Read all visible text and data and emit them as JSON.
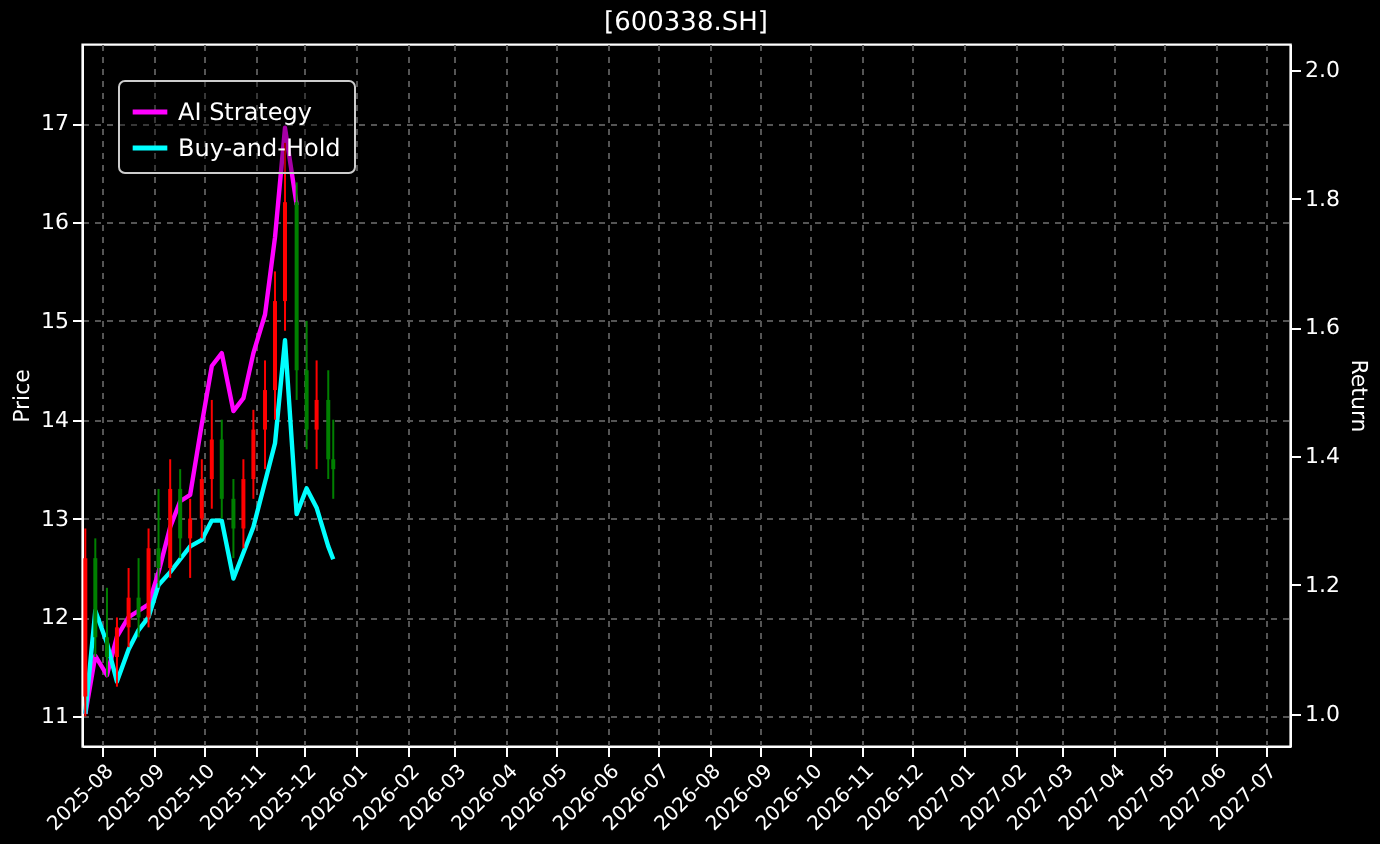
{
  "chart_data": {
    "type": "candlestick",
    "title": "[600338.SH]",
    "ylabel": "Price",
    "y2label": "Return",
    "x": [
      "2025-07-22",
      "2025-07-28",
      "2025-08-04",
      "2025-08-10",
      "2025-08-17",
      "2025-08-23",
      "2025-08-29",
      "2025-09-04",
      "2025-09-11",
      "2025-09-17",
      "2025-09-23",
      "2025-09-30",
      "2025-10-06",
      "2025-10-12",
      "2025-10-19",
      "2025-10-25",
      "2025-10-31",
      "2025-11-07",
      "2025-11-13",
      "2025-11-19",
      "2025-11-26",
      "2025-12-02",
      "2025-12-08",
      "2025-12-15",
      "2025-12-18"
    ],
    "ohlc": [
      [
        11.2,
        12.9,
        11.0,
        12.6
      ],
      [
        12.6,
        12.8,
        11.6,
        11.8
      ],
      [
        11.8,
        12.3,
        11.4,
        11.6
      ],
      [
        11.6,
        12.0,
        11.3,
        11.9
      ],
      [
        11.9,
        12.5,
        11.7,
        12.2
      ],
      [
        12.2,
        12.6,
        11.8,
        12.0
      ],
      [
        12.0,
        12.9,
        11.9,
        12.7
      ],
      [
        12.7,
        13.3,
        12.3,
        12.5
      ],
      [
        12.5,
        13.6,
        12.4,
        13.3
      ],
      [
        13.3,
        13.5,
        12.6,
        12.8
      ],
      [
        12.8,
        13.2,
        12.4,
        13.0
      ],
      [
        13.0,
        13.6,
        12.8,
        13.4
      ],
      [
        13.4,
        14.2,
        13.1,
        13.8
      ],
      [
        13.8,
        14.0,
        13.0,
        13.2
      ],
      [
        13.2,
        13.4,
        12.6,
        12.9
      ],
      [
        12.9,
        13.6,
        12.7,
        13.4
      ],
      [
        13.4,
        14.1,
        13.2,
        13.9
      ],
      [
        13.9,
        14.6,
        13.5,
        14.3
      ],
      [
        14.3,
        15.5,
        14.0,
        15.2
      ],
      [
        15.2,
        16.8,
        14.9,
        16.2
      ],
      [
        16.2,
        16.4,
        14.2,
        14.5
      ],
      [
        14.5,
        15.0,
        13.7,
        13.9
      ],
      [
        13.9,
        14.6,
        13.5,
        14.2
      ],
      [
        14.2,
        14.5,
        13.4,
        13.6
      ],
      [
        13.6,
        14.0,
        13.2,
        13.5
      ]
    ],
    "colors": [
      "#ff0000",
      "#008000",
      "#008000",
      "#ff0000",
      "#ff0000",
      "#008000",
      "#ff0000",
      "#008000",
      "#ff0000",
      "#008000",
      "#ff0000",
      "#ff0000",
      "#ff0000",
      "#008000",
      "#008000",
      "#ff0000",
      "#ff0000",
      "#ff0000",
      "#ff0000",
      "#ff0000",
      "#008000",
      "#008000",
      "#ff0000",
      "#008000",
      "#008000"
    ],
    "series": [
      {
        "name": "AI Strategy",
        "color": "#ff00ff",
        "type": "line",
        "axis": "y2",
        "x": [
          "2025-07-22",
          "2025-07-28",
          "2025-08-04",
          "2025-08-10",
          "2025-08-17",
          "2025-08-23",
          "2025-08-29",
          "2025-09-04",
          "2025-09-11",
          "2025-09-17",
          "2025-09-23",
          "2025-09-30",
          "2025-10-06",
          "2025-10-12",
          "2025-10-19",
          "2025-10-25",
          "2025-10-31",
          "2025-11-07",
          "2025-11-13",
          "2025-11-19",
          "2025-11-26"
        ],
        "values": [
          1.0,
          1.09,
          1.06,
          1.12,
          1.15,
          1.16,
          1.17,
          1.22,
          1.29,
          1.33,
          1.34,
          1.45,
          1.54,
          1.56,
          1.47,
          1.49,
          1.56,
          1.62,
          1.74,
          1.91,
          1.79
        ]
      },
      {
        "name": "Buy-and-Hold",
        "color": "#00ffff",
        "type": "line",
        "axis": "y2",
        "x": [
          "2025-07-22",
          "2025-07-28",
          "2025-08-04",
          "2025-08-10",
          "2025-08-17",
          "2025-08-23",
          "2025-08-29",
          "2025-09-04",
          "2025-09-11",
          "2025-09-17",
          "2025-09-23",
          "2025-09-30",
          "2025-10-06",
          "2025-10-12",
          "2025-10-19",
          "2025-10-25",
          "2025-10-31",
          "2025-11-07",
          "2025-11-13",
          "2025-11-19",
          "2025-11-26",
          "2025-12-02",
          "2025-12-08",
          "2025-12-15",
          "2025-12-18"
        ],
        "values": [
          1.0,
          1.16,
          1.11,
          1.05,
          1.1,
          1.13,
          1.15,
          1.2,
          1.22,
          1.24,
          1.26,
          1.27,
          1.3,
          1.3,
          1.21,
          1.25,
          1.29,
          1.36,
          1.42,
          1.58,
          1.31,
          1.35,
          1.32,
          1.26,
          1.24
        ]
      }
    ],
    "xlim": [
      "2025-07-20",
      "2027-07-16"
    ],
    "xticks": [
      "2025-08",
      "2025-09",
      "2025-10",
      "2025-11",
      "2025-12",
      "2026-01",
      "2026-02",
      "2026-03",
      "2026-04",
      "2026-05",
      "2026-06",
      "2026-07",
      "2026-08",
      "2026-09",
      "2026-10",
      "2026-11",
      "2026-12",
      "2027-01",
      "2027-02",
      "2027-03",
      "2027-04",
      "2027-05",
      "2027-06",
      "2027-07"
    ],
    "ylim": [
      10.7,
      17.8
    ],
    "yticks": [
      11,
      12,
      13,
      14,
      15,
      16,
      17
    ],
    "y2lim": [
      0.95,
      2.04
    ],
    "y2ticks": [
      {
        "value": 1,
        "label": "1.0"
      },
      1.2,
      1.4,
      1.6,
      1.8,
      {
        "value": 2,
        "label": "2.0"
      }
    ],
    "grid": true,
    "legend": "top left"
  }
}
